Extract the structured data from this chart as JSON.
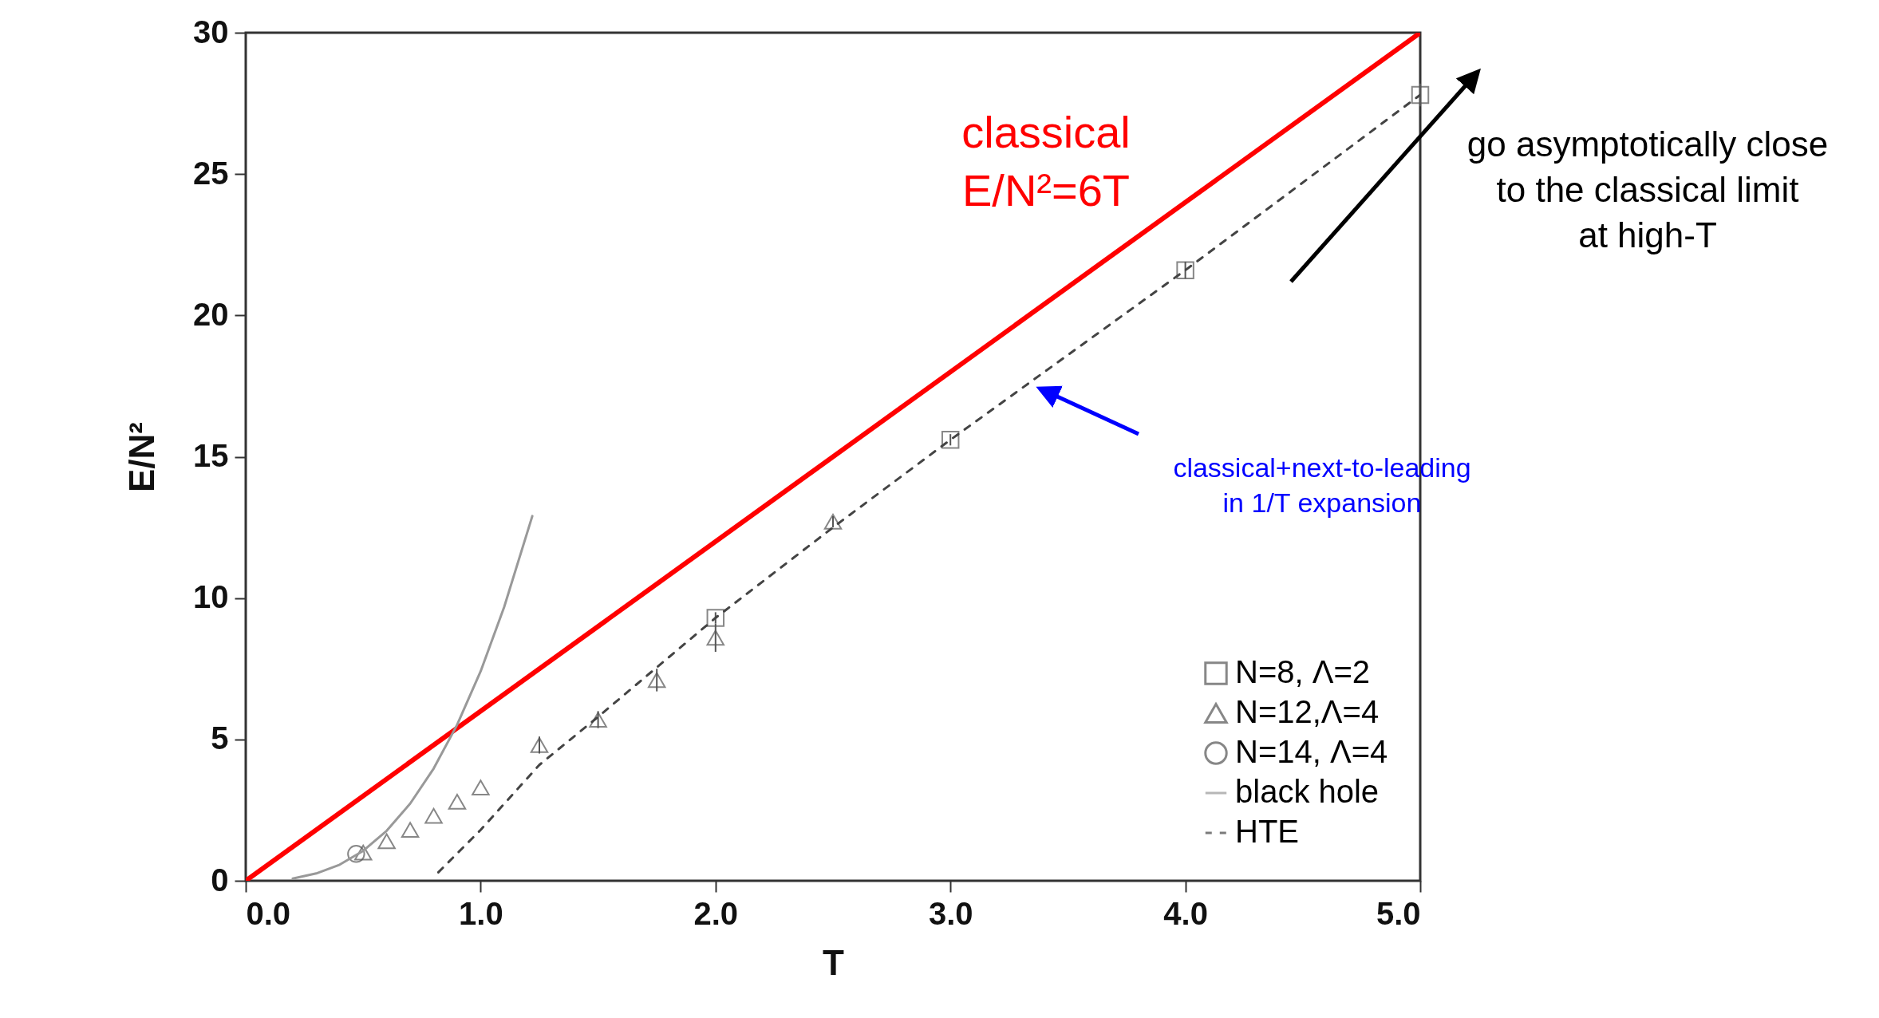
{
  "chart_data": {
    "type": "scatter",
    "xlabel": "T",
    "ylabel": "E/N²",
    "xlim": [
      0,
      5
    ],
    "ylim": [
      0,
      30
    ],
    "xticks": [
      {
        "value": 0,
        "label": "0.0"
      },
      {
        "value": 1,
        "label": "1.0"
      },
      {
        "value": 2,
        "label": "2.0"
      },
      {
        "value": 3,
        "label": "3.0"
      },
      {
        "value": 4,
        "label": "4.0"
      },
      {
        "value": 5,
        "label": "5.0"
      }
    ],
    "yticks": [
      0,
      5,
      10,
      15,
      20,
      25,
      30
    ],
    "grid": false,
    "legend": "bottom right",
    "series": [
      {
        "type": "line",
        "color": "#ff0000",
        "x": [
          0,
          5
        ],
        "values": [
          0,
          30
        ]
      },
      {
        "type": "scatter",
        "name": "N=8, Λ=2",
        "color": "#555555",
        "marker": "square",
        "x": [
          2,
          3,
          4,
          5
        ],
        "values": [
          9.3,
          15.6,
          21.6,
          27.8
        ],
        "errors": [
          0.2,
          0.2,
          0.3,
          0.4
        ]
      },
      {
        "type": "scatter",
        "name": "N=12,Λ=4",
        "color": "#555555",
        "marker": "triangle",
        "x": [
          0.5,
          0.6,
          0.7,
          0.8,
          0.9,
          1.0,
          1.25,
          1.5,
          1.75,
          2.0,
          2.5
        ],
        "values": [
          1.0,
          1.4,
          1.8,
          2.3,
          2.8,
          3.3,
          4.8,
          5.7,
          7.1,
          8.6,
          12.7
        ],
        "errors": [
          null,
          null,
          null,
          null,
          null,
          null,
          0.3,
          0.3,
          0.4,
          0.5,
          0.2
        ]
      },
      {
        "type": "scatter",
        "name": "N=14, Λ=4",
        "color": "#555555",
        "marker": "circle",
        "x": [
          0.47
        ],
        "values": [
          0.95
        ]
      },
      {
        "type": "line",
        "name": "black hole",
        "color": "#999999",
        "x": [
          0.2,
          0.3,
          0.4,
          0.5,
          0.6,
          0.7,
          0.8,
          0.9,
          1.0,
          1.1,
          1.22
        ],
        "values": [
          0.08,
          0.26,
          0.57,
          1.06,
          1.77,
          2.73,
          3.97,
          5.52,
          7.41,
          9.68,
          12.9
        ]
      },
      {
        "type": "line",
        "name": "HTE",
        "color": "#444444",
        "line_style": "dashed",
        "x": [
          0.82,
          1.0,
          1.25,
          1.5,
          2.0,
          2.5,
          3.0,
          4.0,
          5.0
        ],
        "values": [
          0.3,
          1.8,
          4.1,
          5.8,
          9.3,
          12.5,
          15.6,
          21.6,
          27.8
        ]
      }
    ],
    "annotations": [
      "classical\nE/N²=6T",
      "go asymptotically close\nto the classical limit\nat high-T",
      "classical+next-to-leading\nin 1/T expansion"
    ]
  }
}
